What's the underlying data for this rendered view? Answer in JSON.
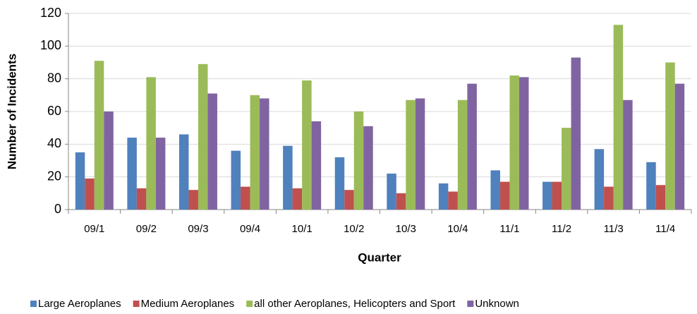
{
  "chart_data": {
    "type": "bar",
    "categories": [
      "09/1",
      "09/2",
      "09/3",
      "09/4",
      "10/1",
      "10/2",
      "10/3",
      "10/4",
      "11/1",
      "11/2",
      "11/3",
      "11/4"
    ],
    "series": [
      {
        "name": "Large Aeroplanes",
        "color": "#4f81bd",
        "values": [
          35,
          44,
          46,
          36,
          39,
          32,
          22,
          16,
          24,
          17,
          37,
          29
        ]
      },
      {
        "name": "Medium Aeroplanes",
        "color": "#c0504d",
        "values": [
          19,
          13,
          12,
          14,
          13,
          12,
          10,
          11,
          17,
          17,
          14,
          15
        ]
      },
      {
        "name": "all other Aeroplanes, Helicopters and Sport",
        "color": "#9bbb59",
        "values": [
          91,
          81,
          89,
          70,
          79,
          60,
          67,
          67,
          82,
          50,
          113,
          90
        ]
      },
      {
        "name": "Unknown",
        "color": "#8064a2",
        "values": [
          60,
          44,
          71,
          68,
          54,
          51,
          68,
          77,
          81,
          93,
          67,
          77
        ]
      }
    ],
    "x_label": "Quarter",
    "y_label": "Number of Incidents",
    "ylim": [
      0,
      120
    ],
    "yticks": [
      0,
      20,
      40,
      60,
      80,
      100,
      120
    ],
    "grid": true,
    "legend": "bottom"
  }
}
